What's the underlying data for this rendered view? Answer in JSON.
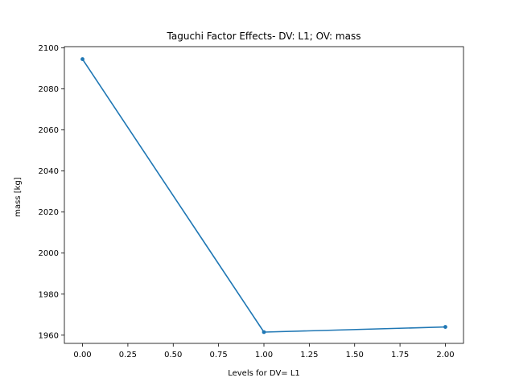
{
  "chart_data": {
    "type": "line",
    "title": "Taguchi Factor Effects- DV: L1; OV: mass",
    "xlabel": "Levels for DV= L1",
    "ylabel": "mass [kg]",
    "x": [
      0,
      1,
      2
    ],
    "series": [
      {
        "values": [
          2094.5,
          1961.5,
          1964.0
        ],
        "color": "#1f77b4",
        "marker": "circle"
      }
    ],
    "xlim": [
      -0.1,
      2.1
    ],
    "ylim": [
      1956.0,
      2100.6
    ],
    "xticks": [
      0.0,
      0.25,
      0.5,
      0.75,
      1.0,
      1.25,
      1.5,
      1.75,
      2.0
    ],
    "xtick_labels": [
      "0.00",
      "0.25",
      "0.50",
      "0.75",
      "1.00",
      "1.25",
      "1.50",
      "1.75",
      "2.00"
    ],
    "yticks": [
      1960,
      1980,
      2000,
      2020,
      2040,
      2060,
      2080,
      2100
    ],
    "ytick_labels": [
      "1960",
      "1980",
      "2000",
      "2020",
      "2040",
      "2060",
      "2080",
      "2100"
    ],
    "grid": false,
    "legend": "none"
  }
}
